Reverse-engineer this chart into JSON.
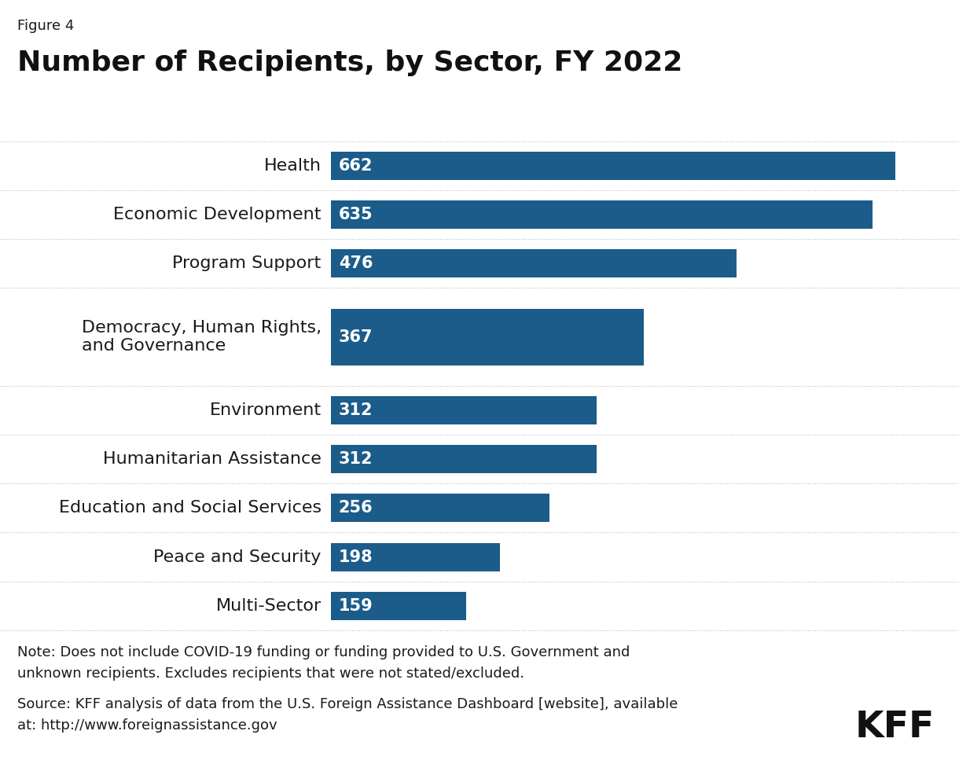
{
  "figure_label": "Figure 4",
  "title": "Number of Recipients, by Sector, FY 2022",
  "categories": [
    "Health",
    "Economic Development",
    "Program Support",
    "Democracy, Human Rights,\nand Governance",
    "Environment",
    "Humanitarian Assistance",
    "Education and Social Services",
    "Peace and Security",
    "Multi-Sector"
  ],
  "values": [
    662,
    635,
    476,
    367,
    312,
    312,
    256,
    198,
    159
  ],
  "bar_color": "#1b5c8a",
  "value_label_color": "#ffffff",
  "background_color": "#ffffff",
  "separator_color": "#bbbbbb",
  "text_color": "#1a1a1a",
  "note_text": "Note: Does not include COVID-19 funding or funding provided to U.S. Government and\nunknown recipients. Excludes recipients that were not stated/excluded.",
  "source_text": "Source: KFF analysis of data from the U.S. Foreign Assistance Dashboard [website], available\nat: http://www.foreignassistance.gov",
  "kff_label": "KFF",
  "xlim_max": 720,
  "figure_label_fontsize": 13,
  "title_fontsize": 26,
  "category_fontsize": 16,
  "value_fontsize": 15,
  "note_fontsize": 13,
  "kff_fontsize": 34
}
